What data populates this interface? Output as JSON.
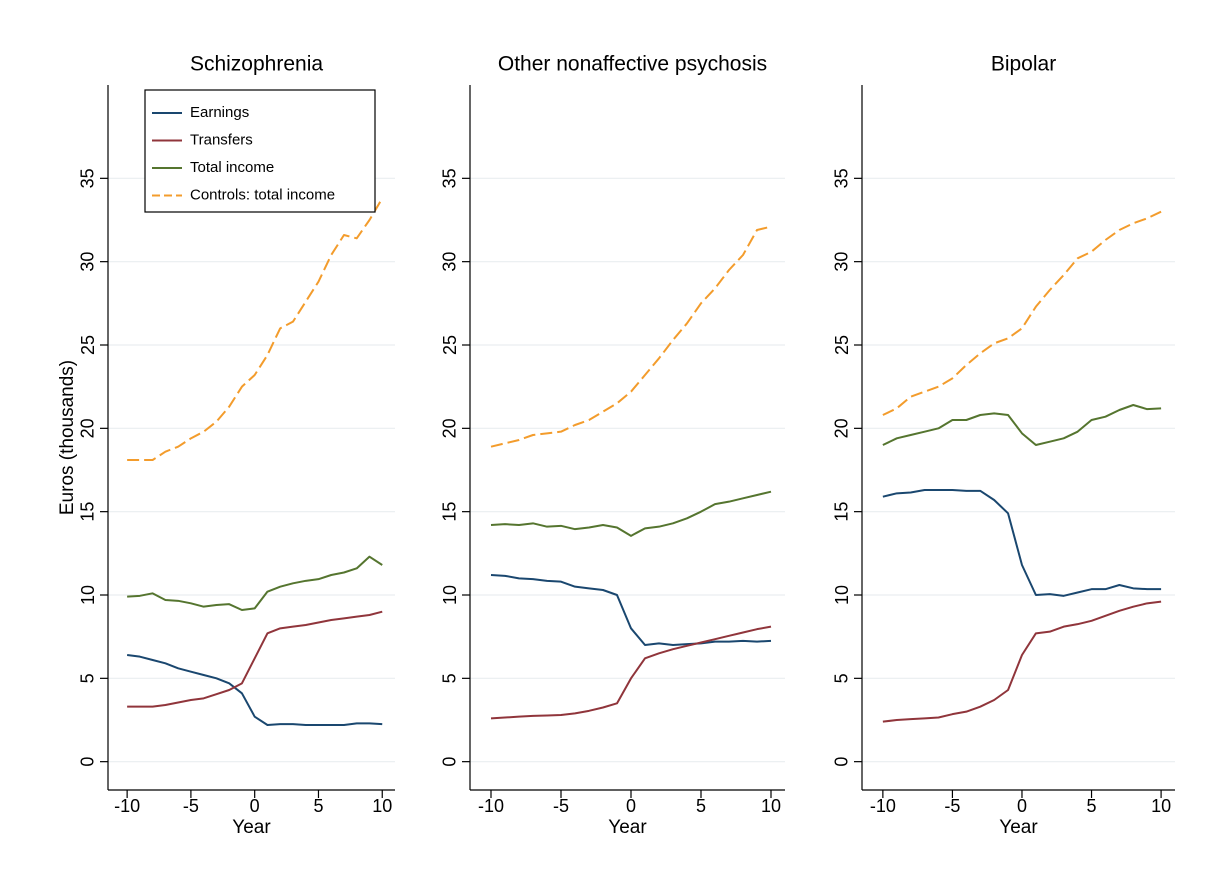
{
  "chart_data": [
    {
      "type": "line",
      "title": "Schizophrenia",
      "xlabel": "Year",
      "ylabel": "Euros (thousands)",
      "legend": "top-left",
      "grid": true,
      "x": [
        -10,
        -9,
        -8,
        -7,
        -6,
        -5,
        -4,
        -3,
        -2,
        -1,
        0,
        1,
        2,
        3,
        4,
        5,
        6,
        7,
        8,
        9,
        10
      ],
      "xlim": [
        -11.5,
        11
      ],
      "xticks": [
        -10,
        -5,
        0,
        5,
        10
      ],
      "ylim": [
        -1.7,
        40.6
      ],
      "yticks": [
        0,
        5,
        10,
        15,
        20,
        25,
        30,
        35
      ],
      "series": [
        {
          "name": "Earnings",
          "color": "#1a476f",
          "values": [
            6.4,
            6.3,
            6.1,
            5.9,
            5.6,
            5.4,
            5.2,
            5.0,
            4.7,
            4.1,
            2.7,
            2.2,
            2.25,
            2.25,
            2.2,
            2.2,
            2.2,
            2.2,
            2.3,
            2.3,
            2.25
          ]
        },
        {
          "name": "Transfers",
          "color": "#90353b",
          "values": [
            3.3,
            3.3,
            3.3,
            3.4,
            3.55,
            3.7,
            3.8,
            4.05,
            4.3,
            4.7,
            6.2,
            7.7,
            8.0,
            8.1,
            8.2,
            8.35,
            8.5,
            8.6,
            8.7,
            8.8,
            9.0
          ]
        },
        {
          "name": "Total income",
          "color": "#55752f",
          "values": [
            9.9,
            9.95,
            10.1,
            9.7,
            9.65,
            9.5,
            9.3,
            9.4,
            9.45,
            9.1,
            9.2,
            10.2,
            10.5,
            10.7,
            10.85,
            10.95,
            11.2,
            11.35,
            11.6,
            12.3,
            11.8
          ]
        },
        {
          "name": "Controls: total income",
          "color": "#f39c2c",
          "dashed": true,
          "values": [
            18.1,
            18.1,
            18.1,
            18.6,
            18.9,
            19.4,
            19.8,
            20.4,
            21.3,
            22.5,
            23.2,
            24.4,
            26.0,
            26.4,
            27.6,
            28.8,
            30.4,
            31.6,
            31.4,
            32.5,
            33.8
          ]
        }
      ]
    },
    {
      "type": "line",
      "title": "Other nonaffective psychosis",
      "xlabel": "Year",
      "grid": true,
      "x": [
        -10,
        -9,
        -8,
        -7,
        -6,
        -5,
        -4,
        -3,
        -2,
        -1,
        0,
        1,
        2,
        3,
        4,
        5,
        6,
        7,
        8,
        9,
        10
      ],
      "xlim": [
        -11.5,
        11
      ],
      "xticks": [
        -10,
        -5,
        0,
        5,
        10
      ],
      "ylim": [
        -1.7,
        40.6
      ],
      "yticks": [
        0,
        5,
        10,
        15,
        20,
        25,
        30,
        35
      ],
      "series": [
        {
          "color": "#1a476f",
          "values": [
            11.2,
            11.15,
            11.0,
            10.95,
            10.85,
            10.8,
            10.5,
            10.4,
            10.3,
            10.0,
            8.0,
            7.0,
            7.1,
            7.0,
            7.05,
            7.1,
            7.2,
            7.2,
            7.25,
            7.2,
            7.25
          ]
        },
        {
          "color": "#90353b",
          "values": [
            2.6,
            2.65,
            2.7,
            2.75,
            2.77,
            2.8,
            2.9,
            3.05,
            3.25,
            3.5,
            5.0,
            6.2,
            6.5,
            6.75,
            6.95,
            7.15,
            7.35,
            7.55,
            7.75,
            7.95,
            8.1
          ]
        },
        {
          "color": "#55752f",
          "values": [
            14.2,
            14.25,
            14.2,
            14.3,
            14.1,
            14.15,
            13.95,
            14.05,
            14.2,
            14.05,
            13.55,
            14.0,
            14.1,
            14.3,
            14.6,
            15.0,
            15.45,
            15.6,
            15.8,
            16.0,
            16.2
          ]
        },
        {
          "color": "#f39c2c",
          "dashed": true,
          "values": [
            18.9,
            19.1,
            19.3,
            19.6,
            19.7,
            19.8,
            20.2,
            20.5,
            21.0,
            21.5,
            22.2,
            23.2,
            24.2,
            25.3,
            26.3,
            27.5,
            28.4,
            29.5,
            30.4,
            31.9,
            32.1
          ]
        }
      ]
    },
    {
      "type": "line",
      "title": "Bipolar",
      "xlabel": "Year",
      "grid": true,
      "x": [
        -10,
        -9,
        -8,
        -7,
        -6,
        -5,
        -4,
        -3,
        -2,
        -1,
        0,
        1,
        2,
        3,
        4,
        5,
        6,
        7,
        8,
        9,
        10
      ],
      "xlim": [
        -11.5,
        11
      ],
      "xticks": [
        -10,
        -5,
        0,
        5,
        10
      ],
      "ylim": [
        -1.7,
        40.6
      ],
      "yticks": [
        0,
        5,
        10,
        15,
        20,
        25,
        30,
        35
      ],
      "series": [
        {
          "color": "#1a476f",
          "values": [
            15.9,
            16.1,
            16.15,
            16.3,
            16.3,
            16.3,
            16.25,
            16.25,
            15.7,
            14.9,
            11.8,
            10.0,
            10.05,
            9.95,
            10.15,
            10.35,
            10.35,
            10.6,
            10.4,
            10.35,
            10.35
          ]
        },
        {
          "color": "#90353b",
          "values": [
            2.4,
            2.5,
            2.55,
            2.6,
            2.65,
            2.85,
            3.0,
            3.3,
            3.7,
            4.3,
            6.4,
            7.7,
            7.8,
            8.1,
            8.25,
            8.45,
            8.75,
            9.05,
            9.3,
            9.5,
            9.6
          ]
        },
        {
          "color": "#55752f",
          "values": [
            19.0,
            19.4,
            19.6,
            19.8,
            20.0,
            20.5,
            20.5,
            20.8,
            20.9,
            20.8,
            19.7,
            19.0,
            19.2,
            19.4,
            19.8,
            20.5,
            20.7,
            21.1,
            21.4,
            21.15,
            21.2
          ]
        },
        {
          "color": "#f39c2c",
          "dashed": true,
          "values": [
            20.8,
            21.2,
            21.9,
            22.2,
            22.5,
            23.0,
            23.8,
            24.5,
            25.1,
            25.4,
            26.0,
            27.3,
            28.3,
            29.2,
            30.2,
            30.6,
            31.3,
            31.9,
            32.3,
            32.6,
            33.0
          ]
        }
      ]
    }
  ]
}
